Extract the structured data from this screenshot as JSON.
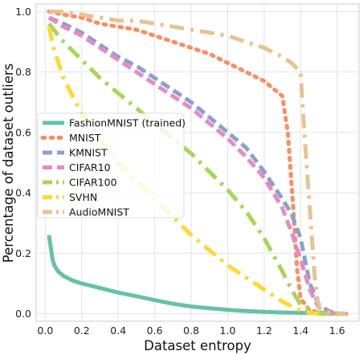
{
  "chart_data": {
    "type": "line",
    "xlabel": "Dataset entropy",
    "ylabel": "Percentage of dataset outliers",
    "xlim": [
      -0.05,
      1.72
    ],
    "ylim": [
      -0.025,
      1.025
    ],
    "xticks": [
      0.0,
      0.2,
      0.4,
      0.6,
      0.8,
      1.0,
      1.2,
      1.4,
      1.6
    ],
    "xtick_labels": [
      "0.0",
      "0.2",
      "0.4",
      "0.6",
      "0.8",
      "1.0",
      "1.2",
      "1.4",
      "1.6"
    ],
    "yticks": [
      0.0,
      0.2,
      0.4,
      0.6,
      0.8,
      1.0
    ],
    "ytick_labels": [
      "0.0",
      "0.2",
      "0.4",
      "0.6",
      "0.8",
      "1.0"
    ],
    "grid": true,
    "legend_position": "center-left",
    "series": [
      {
        "name": "FashionMNIST (trained)",
        "color": "#66c2a5",
        "style": "solid",
        "x": [
          0.02,
          0.03,
          0.04,
          0.05,
          0.07,
          0.1,
          0.15,
          0.2,
          0.3,
          0.4,
          0.5,
          0.6,
          0.7,
          0.8,
          0.9,
          1.0,
          1.1,
          1.2,
          1.3,
          1.4,
          1.5,
          1.6,
          1.65
        ],
        "y": [
          0.26,
          0.22,
          0.18,
          0.16,
          0.14,
          0.125,
          0.11,
          0.1,
          0.085,
          0.07,
          0.058,
          0.045,
          0.033,
          0.024,
          0.018,
          0.013,
          0.009,
          0.006,
          0.004,
          0.003,
          0.002,
          0.001,
          0.0
        ]
      },
      {
        "name": "MNIST",
        "color": "#fc8d62",
        "style": "dotted",
        "x": [
          0.02,
          0.1,
          0.2,
          0.3,
          0.4,
          0.5,
          0.6,
          0.7,
          0.8,
          0.9,
          1.0,
          1.1,
          1.2,
          1.3,
          1.33,
          1.36,
          1.38,
          1.4,
          1.45,
          1.5,
          1.55,
          1.6,
          1.65
        ],
        "y": [
          1.0,
          0.99,
          0.98,
          0.96,
          0.95,
          0.94,
          0.92,
          0.9,
          0.88,
          0.86,
          0.83,
          0.8,
          0.77,
          0.72,
          0.6,
          0.35,
          0.15,
          0.05,
          0.01,
          0.005,
          0.0,
          0.0,
          0.0
        ]
      },
      {
        "name": "KMNIST",
        "color": "#8da0cb",
        "style": "dashed",
        "x": [
          0.02,
          0.1,
          0.2,
          0.3,
          0.4,
          0.5,
          0.6,
          0.7,
          0.8,
          0.9,
          1.0,
          1.1,
          1.2,
          1.3,
          1.35,
          1.4,
          1.45,
          1.5,
          1.55,
          1.6,
          1.65
        ],
        "y": [
          0.98,
          0.96,
          0.93,
          0.89,
          0.85,
          0.82,
          0.78,
          0.74,
          0.7,
          0.65,
          0.6,
          0.55,
          0.47,
          0.38,
          0.33,
          0.25,
          0.1,
          0.03,
          0.01,
          0.0,
          0.0
        ]
      },
      {
        "name": "CIFAR10",
        "color": "#e78ac3",
        "style": "dashed",
        "x": [
          0.02,
          0.1,
          0.2,
          0.3,
          0.4,
          0.5,
          0.6,
          0.7,
          0.8,
          0.9,
          1.0,
          1.1,
          1.2,
          1.3,
          1.35,
          1.4,
          1.45,
          1.5,
          1.55,
          1.6,
          1.65
        ],
        "y": [
          0.98,
          0.95,
          0.92,
          0.88,
          0.84,
          0.8,
          0.76,
          0.72,
          0.68,
          0.63,
          0.58,
          0.52,
          0.45,
          0.35,
          0.27,
          0.18,
          0.08,
          0.02,
          0.005,
          0.0,
          0.0
        ]
      },
      {
        "name": "CIFAR100",
        "color": "#a6d854",
        "style": "dashdot",
        "x": [
          0.02,
          0.1,
          0.2,
          0.3,
          0.4,
          0.5,
          0.6,
          0.7,
          0.8,
          0.9,
          1.0,
          1.1,
          1.2,
          1.3,
          1.35,
          1.4,
          1.45,
          1.5,
          1.55,
          1.6
        ],
        "y": [
          0.96,
          0.9,
          0.84,
          0.78,
          0.73,
          0.68,
          0.63,
          0.58,
          0.53,
          0.47,
          0.41,
          0.34,
          0.25,
          0.14,
          0.08,
          0.03,
          0.01,
          0.0,
          0.0,
          0.0
        ]
      },
      {
        "name": "SVHN",
        "color": "#ffd92f",
        "style": "dashdot",
        "x": [
          0.02,
          0.05,
          0.1,
          0.2,
          0.3,
          0.4,
          0.5,
          0.6,
          0.7,
          0.8,
          0.9,
          1.0,
          1.1,
          1.2,
          1.3,
          1.4,
          1.45,
          1.5
        ],
        "y": [
          0.95,
          0.87,
          0.78,
          0.66,
          0.58,
          0.5,
          0.44,
          0.38,
          0.32,
          0.26,
          0.21,
          0.16,
          0.12,
          0.08,
          0.04,
          0.01,
          0.003,
          0.0
        ]
      },
      {
        "name": "AudioMNIST",
        "color": "#e5c494",
        "style": "dashdot",
        "x": [
          0.02,
          0.1,
          0.2,
          0.3,
          0.4,
          0.5,
          0.6,
          0.7,
          0.8,
          0.9,
          1.0,
          1.1,
          1.2,
          1.3,
          1.35,
          1.4,
          1.42,
          1.45,
          1.48,
          1.5,
          1.55,
          1.6,
          1.65
        ],
        "y": [
          1.0,
          1.0,
          0.99,
          0.98,
          0.97,
          0.97,
          0.96,
          0.95,
          0.94,
          0.93,
          0.92,
          0.9,
          0.88,
          0.85,
          0.83,
          0.8,
          0.6,
          0.35,
          0.1,
          0.02,
          0.005,
          0.0,
          0.0
        ]
      }
    ]
  }
}
